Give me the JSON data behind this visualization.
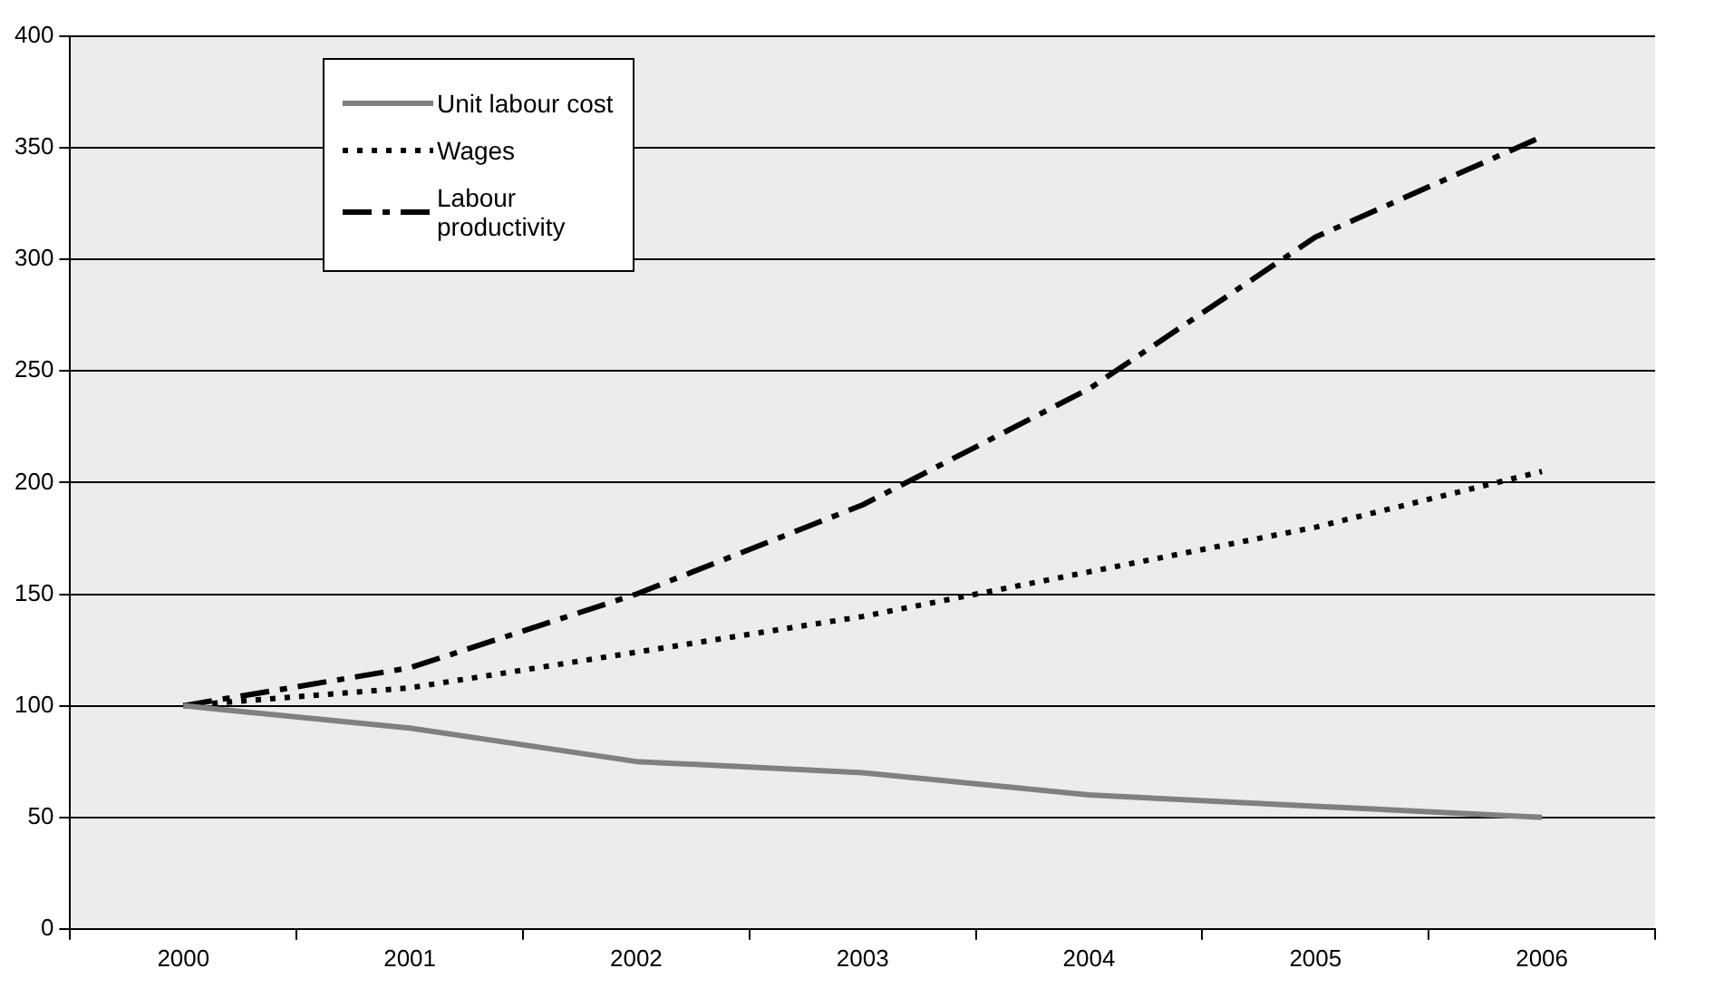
{
  "chart_data": {
    "type": "line",
    "categories": [
      "2000",
      "2001",
      "2002",
      "2003",
      "2004",
      "2005",
      "2006"
    ],
    "series": [
      {
        "name": "Unit labour cost",
        "color": "#808080",
        "line_style": "solid",
        "values": [
          100,
          90,
          75,
          70,
          60,
          55,
          50
        ]
      },
      {
        "name": "Wages",
        "color": "#000000",
        "line_style": "dotted",
        "values": [
          100,
          108,
          124,
          140,
          160,
          180,
          205
        ]
      },
      {
        "name": "Labour productivity",
        "color": "#000000",
        "line_style": "dashed",
        "values": [
          100,
          117,
          150,
          190,
          242,
          310,
          355
        ]
      }
    ],
    "ylim": [
      0,
      400
    ],
    "yticks": [
      0,
      50,
      100,
      150,
      200,
      250,
      300,
      350,
      400
    ],
    "grid": "y",
    "legend": "top left",
    "marker": "none"
  }
}
